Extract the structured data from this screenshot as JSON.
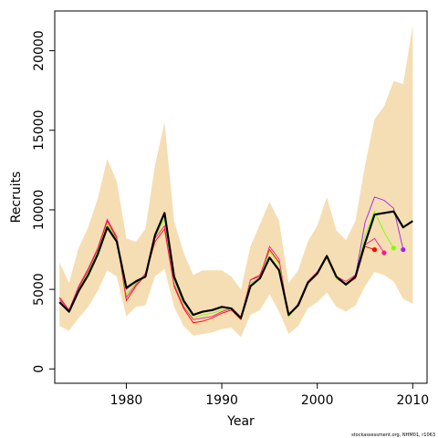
{
  "chart_data": {
    "type": "line",
    "xlabel": "Year",
    "ylabel": "Recruits",
    "xlim": [
      1972.5,
      2011.5
    ],
    "ylim": [
      -900,
      22500
    ],
    "x_ticks": [
      1980,
      1990,
      2000,
      2010
    ],
    "y_ticks": [
      0,
      5000,
      10000,
      15000,
      20000
    ],
    "x_tick_labels": [
      "1980",
      "1990",
      "2000",
      "2010"
    ],
    "y_tick_labels": [
      "0",
      "5000",
      "10000",
      "15000",
      "20000"
    ],
    "grid": false,
    "credit": "stockassessment.org, NHM01, r1063",
    "colors": {
      "band": "#f5deb3",
      "main": "#000000",
      "retro": [
        "#ff0000",
        "#ff1493",
        "#7fff00",
        "#a020f0"
      ]
    },
    "band": {
      "x": [
        1973,
        1974,
        1975,
        1976,
        1977,
        1978,
        1979,
        1980,
        1981,
        1982,
        1983,
        1984,
        1985,
        1986,
        1987,
        1988,
        1989,
        1990,
        1991,
        1992,
        1993,
        1994,
        1995,
        1996,
        1997,
        1998,
        1999,
        2000,
        2001,
        2002,
        2003,
        2004,
        2005,
        2006,
        2007,
        2008,
        2009,
        2010
      ],
      "lower": [
        2700,
        2400,
        3200,
        3900,
        4900,
        6200,
        5800,
        3300,
        3900,
        4000,
        5800,
        6300,
        3900,
        2700,
        2100,
        2200,
        2300,
        2500,
        2600,
        2000,
        3400,
        3700,
        4700,
        3600,
        2200,
        2700,
        3800,
        4200,
        4800,
        3900,
        3600,
        4000,
        5200,
        6100,
        5900,
        5500,
        4400,
        4100
      ],
      "upper": [
        6700,
        5400,
        7600,
        8900,
        10700,
        13200,
        11800,
        8200,
        8000,
        8800,
        12800,
        15500,
        9300,
        7300,
        5900,
        6200,
        6200,
        6200,
        5800,
        5000,
        7700,
        9100,
        10500,
        9300,
        5400,
        6200,
        8000,
        9000,
        10800,
        8700,
        8100,
        9300,
        12800,
        15700,
        16500,
        18100,
        17900,
        21600
      ]
    },
    "series": [
      {
        "x": [
          1973,
          1974,
          1975,
          1976,
          1977,
          1978,
          1979,
          1980,
          1981,
          1982,
          1983,
          1984,
          1985,
          1986,
          1987,
          1988,
          1989,
          1990,
          1991,
          1992,
          1993,
          1994,
          1995,
          1996,
          1997,
          1998,
          1999,
          2000,
          2001,
          2002,
          2003,
          2004,
          2005,
          2006,
          2007,
          2008,
          2009,
          2010
        ],
        "values": [
          4200,
          3600,
          4900,
          5900,
          7200,
          8900,
          8000,
          5100,
          5500,
          5800,
          8400,
          9800,
          5800,
          4300,
          3400,
          3600,
          3700,
          3900,
          3800,
          3200,
          5200,
          5700,
          7000,
          6200,
          3400,
          4000,
          5400,
          6000,
          7100,
          5800,
          5300,
          5800,
          7900,
          9700,
          9800,
          9900,
          8900,
          9300
        ]
      },
      {
        "x": [
          1973,
          1974,
          1975,
          1976,
          1977,
          1978,
          1979,
          1980,
          1981,
          1982,
          1983,
          1984,
          1985,
          1986,
          1987,
          1988,
          1989,
          1990,
          1991,
          1992,
          1993,
          1994,
          1995,
          1996,
          1997,
          1998,
          1999,
          2000,
          2001,
          2002,
          2003,
          2004,
          2005,
          2006
        ],
        "values": [
          4500,
          3700,
          5100,
          6200,
          7500,
          9300,
          8200,
          4300,
          5200,
          5900,
          8000,
          8800,
          5200,
          3800,
          2900,
          3000,
          3200,
          3500,
          3700,
          3100,
          5600,
          5900,
          7500,
          6700,
          3300,
          4100,
          5400,
          6000,
          7000,
          5700,
          5300,
          5700,
          7700,
          7500
        ]
      },
      {
        "x": [
          1973,
          1974,
          1975,
          1976,
          1977,
          1978,
          1979,
          1980,
          1981,
          1982,
          1983,
          1984,
          1985,
          1986,
          1987,
          1988,
          1989,
          1990,
          1991,
          1992,
          1993,
          1994,
          1995,
          1996,
          1997,
          1998,
          1999,
          2000,
          2001,
          2002,
          2003,
          2004,
          2005,
          2006,
          2007
        ],
        "values": [
          4400,
          3700,
          5200,
          6300,
          7600,
          9400,
          8300,
          4500,
          5300,
          6000,
          8200,
          9000,
          5300,
          3900,
          3100,
          3200,
          3300,
          3600,
          3800,
          3200,
          5600,
          5800,
          7700,
          6900,
          3300,
          4100,
          5500,
          6100,
          7100,
          5800,
          5500,
          5900,
          7800,
          8200,
          7300
        ]
      },
      {
        "x": [
          1973,
          1974,
          1975,
          1976,
          1977,
          1978,
          1979,
          1980,
          1981,
          1982,
          1983,
          1984,
          1985,
          1986,
          1987,
          1988,
          1989,
          1990,
          1991,
          1992,
          1993,
          1994,
          1995,
          1996,
          1997,
          1998,
          1999,
          2000,
          2001,
          2002,
          2003,
          2004,
          2005,
          2006,
          2007,
          2008
        ],
        "values": [
          4300,
          3600,
          5000,
          6100,
          7400,
          9100,
          8100,
          4700,
          5400,
          5900,
          8300,
          9400,
          5500,
          4100,
          3200,
          3400,
          3500,
          3700,
          3800,
          3200,
          5400,
          5700,
          7400,
          6600,
          3300,
          4000,
          5400,
          6000,
          7000,
          5700,
          5400,
          5800,
          8400,
          9900,
          8600,
          7600
        ]
      },
      {
        "x": [
          1973,
          1974,
          1975,
          1976,
          1977,
          1978,
          1979,
          1980,
          1981,
          1982,
          1983,
          1984,
          1985,
          1986,
          1987,
          1988,
          1989,
          1990,
          1991,
          1992,
          1993,
          1994,
          1995,
          1996,
          1997,
          1998,
          1999,
          2000,
          2001,
          2002,
          2003,
          2004,
          2005,
          2006,
          2007,
          2008,
          2009
        ],
        "values": [
          4200,
          3600,
          4900,
          5900,
          7200,
          8900,
          8000,
          5000,
          5500,
          5800,
          8400,
          9700,
          5700,
          4200,
          3400,
          3600,
          3700,
          3900,
          3800,
          3200,
          5200,
          5700,
          7000,
          6200,
          3400,
          4000,
          5400,
          6000,
          7100,
          5800,
          5300,
          5800,
          9200,
          10800,
          10600,
          10100,
          7500
        ]
      }
    ]
  }
}
